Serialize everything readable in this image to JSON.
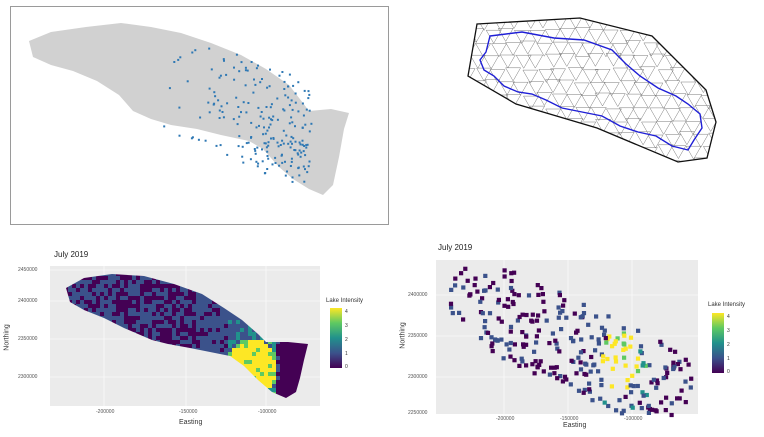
{
  "panels": {
    "top_left": {
      "kind": "basin map with lake locations"
    },
    "top_right": {
      "kind": "triangular mesh over basin outline"
    },
    "bottom_left": {
      "title": "July 2019",
      "xlabel": "Easting",
      "ylabel": "Northing",
      "x_ticks": [
        "-200000",
        "-150000",
        "-100000"
      ],
      "y_ticks": [
        "2450000",
        "2400000",
        "2350000",
        "2300000"
      ],
      "legend_title": "Lake Intensity",
      "legend_ticks": [
        "4",
        "3",
        "2",
        "1",
        "0"
      ]
    },
    "bottom_right": {
      "title": "July 2019",
      "xlabel": "Easting",
      "ylabel": "Northing",
      "x_ticks": [
        "-200000",
        "-150000",
        "-100000"
      ],
      "y_ticks": [
        "2400000",
        "2350000",
        "2300000",
        "2250000"
      ],
      "legend_title": "Lake Intensity",
      "legend_ticks": [
        "4",
        "3",
        "2",
        "1",
        "0"
      ]
    }
  },
  "colors": {
    "land": "#d1d1d1",
    "lakes": "#2e78b4",
    "mesh": "#7a7a7a",
    "boundary": "#1f1fd6",
    "panel_bg": "#ebebeb",
    "viridis": [
      "#440154",
      "#3b528b",
      "#21918c",
      "#5ec962",
      "#fde725"
    ]
  }
}
